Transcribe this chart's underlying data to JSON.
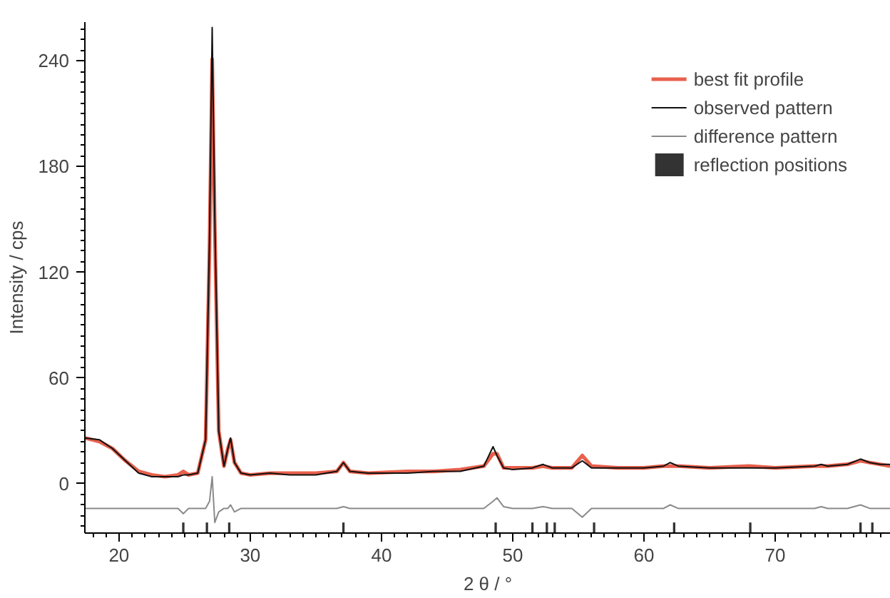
{
  "chart_data": {
    "type": "line",
    "xlabel": "2 θ / °",
    "ylabel": "Intensity / cps",
    "x": [
      17.4,
      18.5,
      19.5,
      20.5,
      21.5,
      22.5,
      23.5,
      24.5,
      24.9,
      25.3,
      26.0,
      26.6,
      26.9,
      27.1,
      27.3,
      27.6,
      28.0,
      28.3,
      28.5,
      28.8,
      29.3,
      30,
      31.5,
      33,
      35,
      36.6,
      37.1,
      37.6,
      39,
      42,
      44,
      46,
      47.8,
      48.5,
      48.8,
      49.3,
      50,
      51.5,
      52.3,
      53,
      54.5,
      55.3,
      56,
      58,
      60,
      61.5,
      62,
      62.6,
      65,
      68,
      70,
      73,
      73.5,
      74,
      75.5,
      76.5,
      77.2,
      78,
      78.8
    ],
    "series": [
      {
        "name": "best fit profile",
        "color": "#e8604c",
        "values": [
          26,
          24,
          20,
          13,
          7,
          5,
          4,
          5,
          7,
          5,
          6,
          25,
          135,
          241,
          145,
          30,
          10,
          20,
          25,
          12,
          6,
          5,
          6,
          6,
          6,
          7,
          12,
          7,
          6,
          7,
          7,
          8,
          10,
          17,
          17,
          9,
          9,
          9,
          10,
          9,
          9,
          16,
          10,
          9,
          9,
          10,
          10,
          10,
          9,
          10,
          9,
          10,
          10,
          10,
          11,
          13,
          12,
          11,
          10
        ]
      },
      {
        "name": "observed pattern",
        "color": "#111111",
        "values": [
          26,
          25,
          20,
          13,
          6,
          4,
          4,
          4,
          5,
          5,
          6,
          25,
          140,
          259,
          150,
          30,
          10,
          20,
          26,
          12,
          6,
          5,
          6,
          5,
          5,
          7,
          12,
          7,
          6,
          6,
          7,
          7,
          10,
          21,
          16,
          9,
          8,
          9,
          11,
          9,
          9,
          13,
          9,
          9,
          9,
          10,
          12,
          10,
          9,
          9,
          9,
          10,
          11,
          10,
          11,
          14,
          12,
          11,
          11
        ]
      },
      {
        "name": "difference pattern",
        "color": "#8a8a8a",
        "values": [
          -14,
          -14,
          -14,
          -14,
          -14,
          -14,
          -14,
          -14,
          -17,
          -14,
          -14,
          -14,
          -10,
          4,
          -22,
          -16,
          -14,
          -14,
          -12,
          -16,
          -14,
          -14,
          -14,
          -14,
          -14,
          -14,
          -13,
          -14,
          -14,
          -14,
          -14,
          -14,
          -14,
          -10,
          -8,
          -13,
          -14,
          -14,
          -13,
          -14,
          -14,
          -19,
          -14,
          -14,
          -14,
          -14,
          -12,
          -14,
          -14,
          -14,
          -14,
          -14,
          -13,
          -14,
          -14,
          -12,
          -14,
          -14,
          -14
        ]
      },
      {
        "name": "reflection positions",
        "type": "bar",
        "color": "#333333",
        "x": [
          24.9,
          26.7,
          28.4,
          37.1,
          48.7,
          51.5,
          52.6,
          53.2,
          56.2,
          62.3,
          68.1,
          76.5,
          77.4
        ],
        "base": [
          -28,
          -28,
          -28,
          -28,
          -28,
          -28,
          -28,
          -28,
          -28,
          -28,
          -28,
          -28,
          -28
        ],
        "values": [
          6,
          6,
          6,
          6,
          6,
          6,
          6,
          6,
          6,
          6,
          6,
          6,
          6
        ]
      }
    ],
    "xlim": [
      17.4,
      78.8
    ],
    "ylim": [
      -28,
      262
    ],
    "xticks": [
      20,
      30,
      40,
      50,
      60,
      70
    ],
    "yticks": [
      0,
      60,
      120,
      180,
      240
    ],
    "grid": false,
    "legend": "top right"
  }
}
